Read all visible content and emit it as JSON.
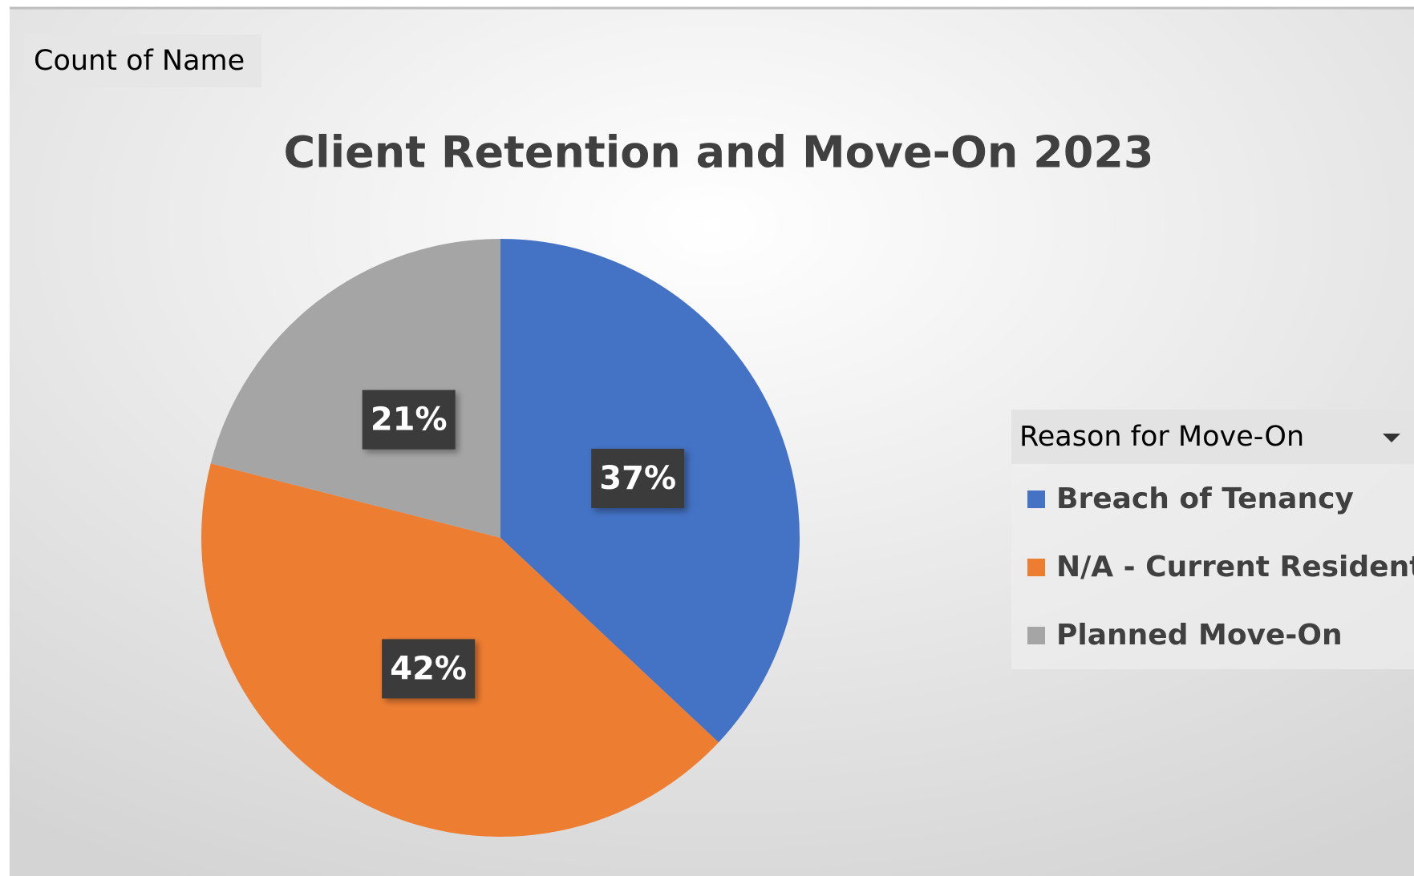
{
  "chart_data": {
    "type": "pie",
    "title": "Client Retention and Move-On 2023",
    "field_button": "Count of Name",
    "legend_title": "Reason for Move-On",
    "categories": [
      "Breach of Tenancy",
      "N/A - Current Resident",
      "Planned Move-On"
    ],
    "values": [
      37,
      42,
      21
    ],
    "value_labels": [
      "37%",
      "42%",
      "21%"
    ],
    "colors": [
      "#4472c4",
      "#ed7d31",
      "#a5a5a5"
    ],
    "legend": "right"
  }
}
